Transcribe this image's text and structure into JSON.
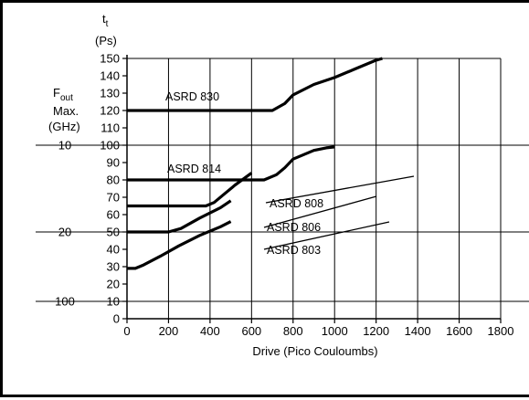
{
  "chart_data": {
    "type": "line",
    "xlabel": "Drive (Pico Couloumbs)",
    "ylabel_unit_symbol": "t",
    "ylabel_unit_subscript": "t",
    "ylabel_unit": "(Ps)",
    "left_axis_title": {
      "line1_main": "F",
      "line1_sub": "out",
      "line2": "Max.",
      "line3": "(GHz)"
    },
    "xlim": [
      0,
      1800
    ],
    "ylim": [
      0,
      150
    ],
    "x_ticks": [
      "0",
      "200",
      "400",
      "600",
      "800",
      "1000",
      "1200",
      "1400",
      "1600",
      "1800"
    ],
    "y_ticks": [
      "0",
      "10",
      "20",
      "30",
      "40",
      "50",
      "60",
      "70",
      "80",
      "90",
      "100",
      "110",
      "120",
      "130",
      "140",
      "150"
    ],
    "fout_ticks": [
      {
        "label": "10",
        "t": 100
      },
      {
        "label": "20",
        "t": 50
      },
      {
        "label": "100",
        "t": 10
      }
    ],
    "grid": true,
    "series": [
      {
        "name": "ASRD 830",
        "points": [
          [
            0,
            120
          ],
          [
            600,
            120
          ],
          [
            700,
            120
          ],
          [
            760,
            124
          ],
          [
            800,
            129
          ],
          [
            900,
            135
          ],
          [
            1000,
            139
          ],
          [
            1100,
            144
          ],
          [
            1200,
            149
          ],
          [
            1230,
            150
          ]
        ]
      },
      {
        "name": "ASRD 814",
        "points": [
          [
            0,
            80
          ],
          [
            660,
            80
          ],
          [
            720,
            83
          ],
          [
            760,
            87
          ],
          [
            800,
            92
          ],
          [
            900,
            97
          ],
          [
            960,
            98.5
          ],
          [
            1000,
            99
          ]
        ]
      },
      {
        "name": "ASRD 808",
        "points": [
          [
            0,
            65
          ],
          [
            380,
            65
          ],
          [
            420,
            67
          ],
          [
            470,
            72
          ],
          [
            520,
            77
          ],
          [
            600,
            84
          ]
        ]
      },
      {
        "name": "ASRD 806",
        "points": [
          [
            0,
            50
          ],
          [
            200,
            50
          ],
          [
            260,
            52
          ],
          [
            350,
            58
          ],
          [
            450,
            64
          ],
          [
            500,
            68
          ]
        ]
      },
      {
        "name": "ASRD 803",
        "points": [
          [
            0,
            29
          ],
          [
            40,
            29
          ],
          [
            80,
            31
          ],
          [
            160,
            36
          ],
          [
            250,
            42
          ],
          [
            350,
            48
          ],
          [
            450,
            53
          ],
          [
            500,
            56
          ]
        ]
      }
    ]
  }
}
